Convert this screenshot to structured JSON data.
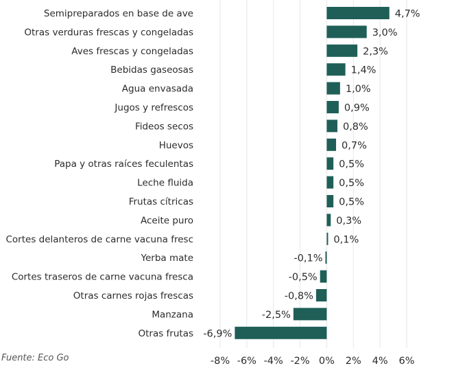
{
  "chart_data": {
    "type": "bar",
    "orientation": "horizontal",
    "categories": [
      "Semipreparados en base de ave",
      "Otras verduras frescas y congeladas",
      "Aves frescas y congeladas",
      "Bebidas gaseosas",
      "Agua envasada",
      "Jugos y refrescos",
      "Fideos secos",
      "Huevos",
      "Papa y otras raíces feculentas",
      "Leche fluida",
      "Frutas cítricas",
      "Aceite puro",
      "Cortes delanteros de carne vacuna fresc",
      "Yerba mate",
      "Cortes traseros de carne vacuna fresca",
      "Otras carnes rojas frescas",
      "Manzana",
      "Otras frutas"
    ],
    "values": [
      4.7,
      3.0,
      2.3,
      1.4,
      1.0,
      0.9,
      0.8,
      0.7,
      0.5,
      0.5,
      0.5,
      0.3,
      0.1,
      -0.1,
      -0.5,
      -0.8,
      -2.5,
      -6.9
    ],
    "value_labels": [
      "4,7%",
      "3,0%",
      "2,3%",
      "1,4%",
      "1,0%",
      "0,9%",
      "0,8%",
      "0,7%",
      "0,5%",
      "0,5%",
      "0,5%",
      "0,3%",
      "0,1%",
      "-0,1%",
      "-0,5%",
      "-0,8%",
      "-2,5%",
      "-6,9%"
    ],
    "xlim": [
      -8,
      6
    ],
    "x_ticks": [
      -8,
      -6,
      -4,
      -2,
      0,
      2,
      4,
      6
    ],
    "x_tick_labels": [
      "-8%",
      "-6%",
      "-4%",
      "-2%",
      "0%",
      "2%",
      "4%",
      "6%"
    ],
    "grid": true,
    "bar_color": "#1f5f58",
    "grid_color": "#e6e6e6",
    "source": "Fuente: Eco Go"
  }
}
